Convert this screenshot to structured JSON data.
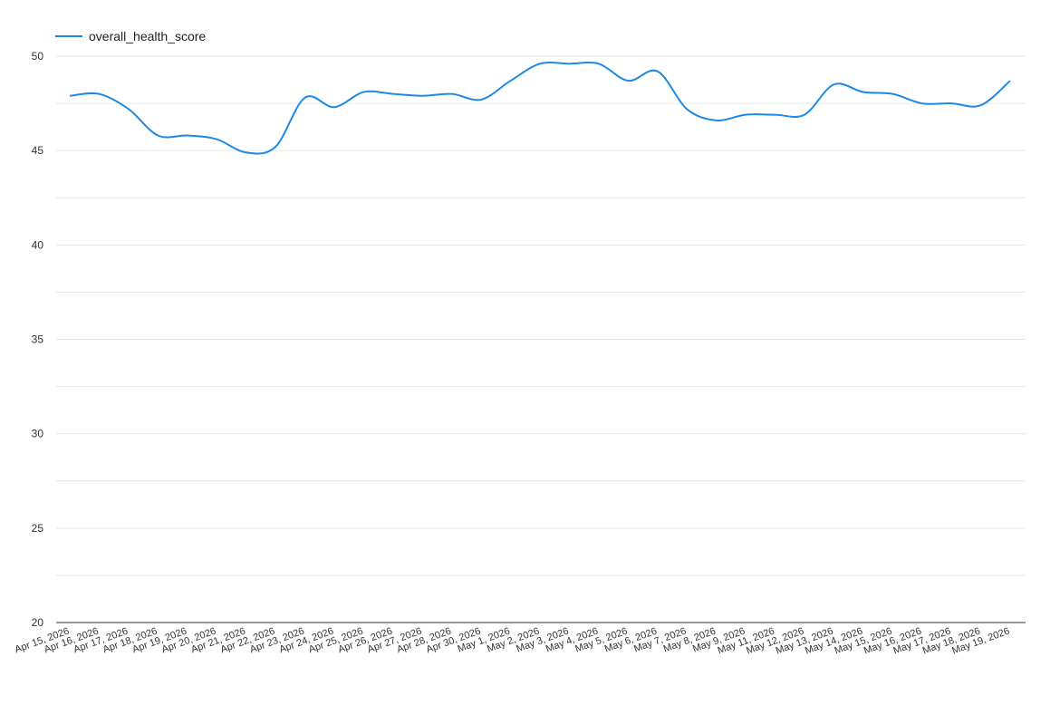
{
  "colors": {
    "series": "#1e88e5",
    "grid": "#e6e6e6",
    "axis": "#333333"
  },
  "legend": {
    "label": "overall_health_score",
    "position": "top-left"
  },
  "chart_data": {
    "type": "line",
    "title": "",
    "xlabel": "",
    "ylabel": "",
    "ylim": [
      20,
      50
    ],
    "yticks": [
      20,
      25,
      30,
      35,
      40,
      45,
      50
    ],
    "grid": true,
    "categories": [
      "Apr 15, 2026",
      "Apr 16, 2026",
      "Apr 17, 2026",
      "Apr 18, 2026",
      "Apr 19, 2026",
      "Apr 20, 2026",
      "Apr 21, 2026",
      "Apr 22, 2026",
      "Apr 23, 2026",
      "Apr 24, 2026",
      "Apr 25, 2026",
      "Apr 26, 2026",
      "Apr 27, 2026",
      "Apr 28, 2026",
      "Apr 30, 2026",
      "May 1, 2026",
      "May 2, 2026",
      "May 3, 2026",
      "May 4, 2026",
      "May 5, 2026",
      "May 6, 2026",
      "May 7, 2026",
      "May 8, 2026",
      "May 9, 2026",
      "May 11, 2026",
      "May 12, 2026",
      "May 13, 2026",
      "May 14, 2026",
      "May 15, 2026",
      "May 16, 2026",
      "May 17, 2026",
      "May 18, 2026",
      "May 19, 2026"
    ],
    "series": [
      {
        "name": "overall_health_score",
        "values": [
          47.9,
          48.0,
          47.2,
          45.8,
          45.8,
          45.6,
          44.9,
          45.2,
          47.8,
          47.3,
          48.1,
          48.0,
          47.9,
          48.0,
          47.7,
          48.7,
          49.6,
          49.6,
          49.6,
          48.7,
          49.2,
          47.2,
          46.6,
          46.9,
          46.9,
          46.9,
          48.5,
          48.1,
          48.0,
          47.5,
          47.5,
          47.4,
          48.7
        ]
      }
    ]
  }
}
